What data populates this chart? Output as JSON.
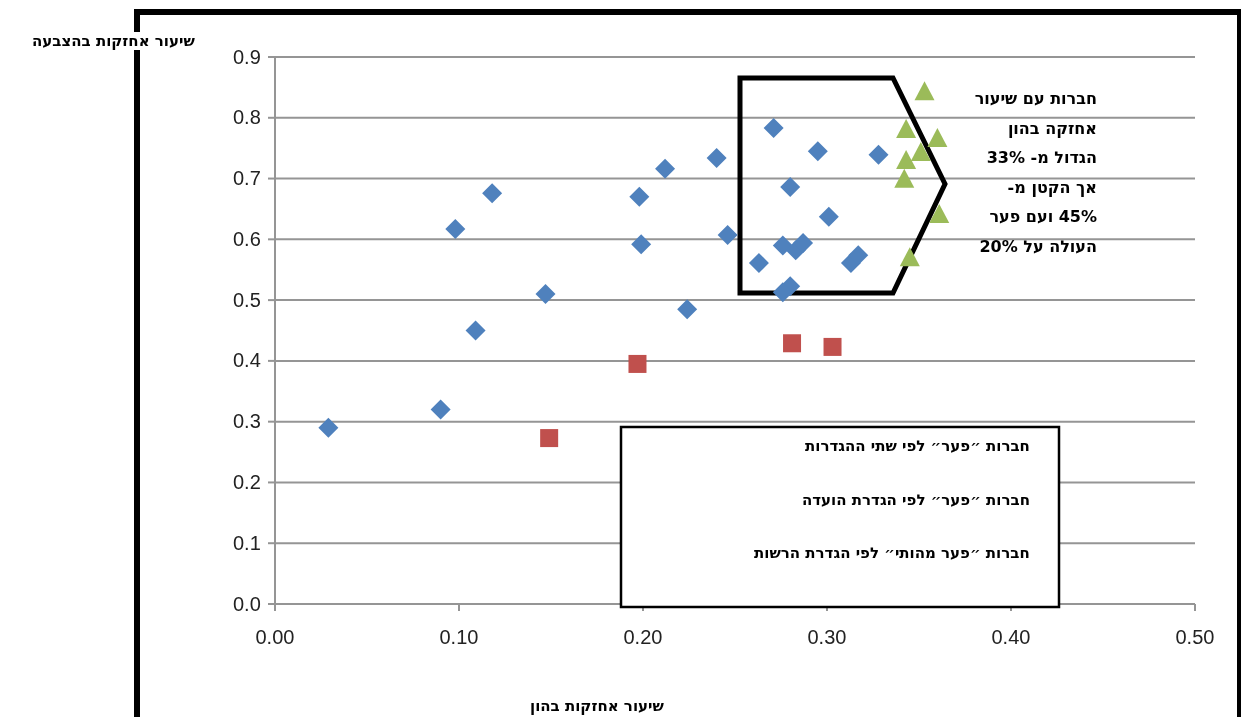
{
  "chart_data": {
    "type": "scatter",
    "xlabel": "שיעור אחזקות בהון",
    "ylabel": "שיעור אחזקות בהצבעה",
    "xlim": [
      0,
      0.5
    ],
    "xticks": [
      {
        "value": 0,
        "label": "0.00"
      },
      {
        "value": 0.1,
        "label": "0.10"
      },
      {
        "value": 0.2,
        "label": "0.20"
      },
      {
        "value": 0.3,
        "label": "0.30"
      },
      {
        "value": 0.4,
        "label": "0.40"
      },
      {
        "value": 0.5,
        "label": "0.50"
      }
    ],
    "ylim": [
      0,
      0.9
    ],
    "yticks": [
      {
        "value": 0,
        "label": "0.0"
      },
      {
        "value": 0.1,
        "label": "0.1"
      },
      {
        "value": 0.2,
        "label": "0.2"
      },
      {
        "value": 0.3,
        "label": "0.3"
      },
      {
        "value": 0.4,
        "label": "0.4"
      },
      {
        "value": 0.5,
        "label": "0.5"
      },
      {
        "value": 0.6,
        "label": "0.6"
      },
      {
        "value": 0.7,
        "label": "0.7"
      },
      {
        "value": 0.8,
        "label": "0.8"
      },
      {
        "value": 0.9,
        "label": "0.9"
      }
    ],
    "grid": "y",
    "series": [
      {
        "color": "#4f81bd",
        "marker": "diamond",
        "x": [
          0.029,
          0.09,
          0.109,
          0.098,
          0.118,
          0.147,
          0.198,
          0.199,
          0.212,
          0.224,
          0.24,
          0.246,
          0.271,
          0.263,
          0.276,
          0.28,
          0.28,
          0.276,
          0.283,
          0.287,
          0.295,
          0.301,
          0.313,
          0.317,
          0.328
        ],
        "values": [
          0.29,
          0.32,
          0.45,
          0.617,
          0.676,
          0.51,
          0.67,
          0.592,
          0.716,
          0.485,
          0.734,
          0.607,
          0.783,
          0.561,
          0.59,
          0.686,
          0.523,
          0.513,
          0.582,
          0.594,
          0.745,
          0.637,
          0.561,
          0.574,
          0.739
        ]
      },
      {
        "color": "#c0504d",
        "marker": "square",
        "x": [
          0.149,
          0.197,
          0.281,
          0.303
        ],
        "values": [
          0.273,
          0.395,
          0.429,
          0.423
        ]
      },
      {
        "color": "#9bbb59",
        "marker": "triangle",
        "x": [
          0.353,
          0.343,
          0.36,
          0.351,
          0.343,
          0.342,
          0.361,
          0.345
        ],
        "values": [
          0.842,
          0.78,
          0.765,
          0.742,
          0.729,
          0.698,
          0.64,
          0.569
        ]
      }
    ],
    "annotations": [
      "חברות עם שיעור אחזקה בהון הגדול מ- 33% אך הקטן מ- 45% ועם פער העולה על 20%",
      "חברות ״פער״ לפי שתי ההגדרות",
      "חברות ״פער״ לפי הגדרת הועדה",
      "חברות ״פער מהותי״ לפי הגדרת הרשות"
    ]
  }
}
